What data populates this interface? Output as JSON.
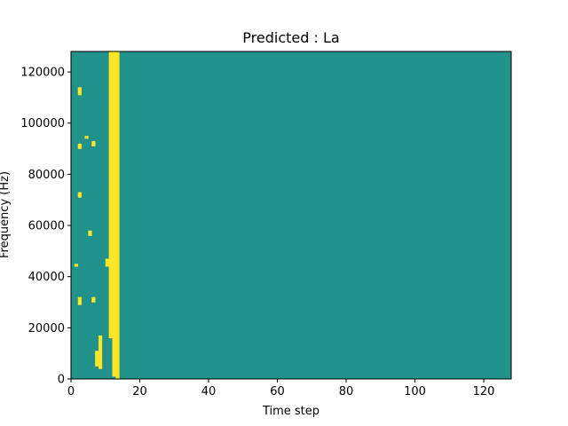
{
  "chart_data": {
    "type": "heatmap",
    "title": "Predicted : La",
    "xlabel": "Time step",
    "ylabel": "Frequency (Hz)",
    "xlim": [
      0,
      128
    ],
    "ylim": [
      0,
      128000
    ],
    "x_ticks": [
      0,
      20,
      40,
      60,
      80,
      100,
      120
    ],
    "y_ticks": [
      0,
      20000,
      40000,
      60000,
      80000,
      100000,
      120000
    ],
    "x_tick_labels": [
      "0",
      "20",
      "40",
      "60",
      "80",
      "100",
      "120"
    ],
    "y_tick_labels": [
      "0",
      "20000",
      "40000",
      "60000",
      "80000",
      "100000",
      "120000"
    ],
    "colormap": "viridis",
    "value_range": [
      -1,
      1
    ],
    "colors": {
      "low": "#440154",
      "mid": "#21918c",
      "high": "#fde725"
    },
    "background_value": 0,
    "grid": false,
    "n_time_steps": 128,
    "n_freq_bins": 128,
    "freq_bin_hz": 1000,
    "cells_high": [
      [
        1,
        44
      ],
      [
        2,
        29
      ],
      [
        2,
        30
      ],
      [
        2,
        31
      ],
      [
        2,
        71
      ],
      [
        2,
        72
      ],
      [
        2,
        90
      ],
      [
        2,
        91
      ],
      [
        2,
        111
      ],
      [
        2,
        112
      ],
      [
        2,
        113
      ],
      [
        4,
        94
      ],
      [
        5,
        56
      ],
      [
        5,
        57
      ],
      [
        6,
        30
      ],
      [
        6,
        31
      ],
      [
        6,
        91
      ],
      [
        6,
        92
      ],
      [
        7,
        5
      ],
      [
        7,
        6
      ],
      [
        7,
        7
      ],
      [
        7,
        8
      ],
      [
        7,
        9
      ],
      [
        7,
        10
      ],
      [
        8,
        4
      ],
      [
        8,
        5
      ],
      [
        8,
        6
      ],
      [
        8,
        7
      ],
      [
        8,
        8
      ],
      [
        8,
        9
      ],
      [
        8,
        10
      ],
      [
        8,
        11
      ],
      [
        8,
        12
      ],
      [
        8,
        13
      ],
      [
        8,
        14
      ],
      [
        8,
        15
      ],
      [
        8,
        16
      ],
      [
        10,
        44
      ],
      [
        10,
        45
      ],
      [
        10,
        46
      ],
      [
        11,
        16
      ],
      [
        11,
        17
      ],
      [
        11,
        18
      ],
      [
        11,
        19
      ],
      [
        11,
        20
      ],
      [
        11,
        21
      ],
      [
        11,
        22
      ],
      [
        11,
        23
      ],
      [
        11,
        24
      ],
      [
        11,
        25
      ],
      [
        11,
        26
      ],
      [
        11,
        27
      ],
      [
        11,
        28
      ],
      [
        11,
        29
      ],
      [
        11,
        30
      ],
      [
        11,
        31
      ],
      [
        11,
        32
      ],
      [
        11,
        33
      ],
      [
        11,
        34
      ],
      [
        11,
        35
      ],
      [
        11,
        36
      ],
      [
        11,
        37
      ],
      [
        11,
        38
      ],
      [
        11,
        39
      ],
      [
        11,
        40
      ],
      [
        11,
        41
      ],
      [
        11,
        42
      ],
      [
        11,
        43
      ],
      [
        11,
        44
      ],
      [
        11,
        45
      ],
      [
        11,
        46
      ],
      [
        11,
        47
      ],
      [
        11,
        48
      ],
      [
        11,
        49
      ],
      [
        11,
        50
      ],
      [
        11,
        51
      ],
      [
        11,
        52
      ],
      [
        11,
        53
      ],
      [
        11,
        54
      ],
      [
        11,
        55
      ],
      [
        11,
        56
      ],
      [
        11,
        57
      ],
      [
        11,
        58
      ],
      [
        11,
        59
      ],
      [
        11,
        60
      ],
      [
        11,
        61
      ],
      [
        11,
        62
      ],
      [
        11,
        63
      ],
      [
        11,
        64
      ],
      [
        11,
        65
      ],
      [
        11,
        66
      ],
      [
        11,
        67
      ],
      [
        11,
        68
      ],
      [
        11,
        69
      ],
      [
        11,
        70
      ],
      [
        11,
        71
      ],
      [
        11,
        72
      ],
      [
        11,
        73
      ],
      [
        11,
        74
      ],
      [
        11,
        75
      ],
      [
        11,
        76
      ],
      [
        11,
        77
      ],
      [
        11,
        78
      ],
      [
        11,
        79
      ],
      [
        11,
        80
      ],
      [
        11,
        81
      ],
      [
        11,
        82
      ],
      [
        11,
        83
      ],
      [
        11,
        84
      ],
      [
        11,
        85
      ],
      [
        11,
        86
      ],
      [
        11,
        87
      ],
      [
        11,
        88
      ],
      [
        11,
        89
      ],
      [
        11,
        90
      ],
      [
        11,
        91
      ],
      [
        11,
        92
      ],
      [
        11,
        93
      ],
      [
        11,
        94
      ],
      [
        11,
        95
      ],
      [
        11,
        96
      ],
      [
        11,
        97
      ],
      [
        11,
        98
      ],
      [
        11,
        99
      ],
      [
        11,
        100
      ],
      [
        11,
        101
      ],
      [
        11,
        102
      ],
      [
        11,
        103
      ],
      [
        11,
        104
      ],
      [
        11,
        105
      ],
      [
        11,
        106
      ],
      [
        11,
        107
      ],
      [
        11,
        108
      ],
      [
        11,
        109
      ],
      [
        11,
        110
      ],
      [
        11,
        111
      ],
      [
        11,
        112
      ],
      [
        11,
        113
      ],
      [
        11,
        114
      ],
      [
        11,
        115
      ],
      [
        11,
        116
      ],
      [
        11,
        117
      ],
      [
        11,
        118
      ],
      [
        11,
        119
      ],
      [
        11,
        120
      ],
      [
        11,
        121
      ],
      [
        11,
        122
      ],
      [
        11,
        123
      ],
      [
        11,
        124
      ],
      [
        11,
        125
      ],
      [
        11,
        126
      ],
      [
        11,
        127
      ],
      [
        12,
        1
      ],
      [
        12,
        2
      ],
      [
        12,
        3
      ],
      [
        12,
        4
      ],
      [
        12,
        5
      ],
      [
        12,
        6
      ],
      [
        12,
        7
      ],
      [
        12,
        8
      ],
      [
        12,
        9
      ],
      [
        12,
        10
      ],
      [
        12,
        11
      ],
      [
        12,
        12
      ],
      [
        12,
        13
      ],
      [
        12,
        14
      ],
      [
        12,
        15
      ],
      [
        12,
        16
      ],
      [
        12,
        17
      ],
      [
        12,
        18
      ],
      [
        12,
        19
      ],
      [
        12,
        20
      ],
      [
        12,
        21
      ],
      [
        12,
        22
      ],
      [
        12,
        23
      ],
      [
        12,
        24
      ],
      [
        12,
        25
      ],
      [
        12,
        26
      ],
      [
        12,
        27
      ],
      [
        12,
        28
      ],
      [
        12,
        29
      ],
      [
        12,
        30
      ],
      [
        12,
        31
      ],
      [
        12,
        32
      ],
      [
        12,
        33
      ],
      [
        12,
        34
      ],
      [
        12,
        35
      ],
      [
        12,
        36
      ],
      [
        12,
        37
      ],
      [
        12,
        38
      ],
      [
        12,
        39
      ],
      [
        12,
        40
      ],
      [
        12,
        41
      ],
      [
        12,
        42
      ],
      [
        12,
        43
      ],
      [
        12,
        44
      ],
      [
        12,
        45
      ],
      [
        12,
        46
      ],
      [
        12,
        47
      ],
      [
        12,
        48
      ],
      [
        12,
        49
      ],
      [
        12,
        50
      ],
      [
        12,
        51
      ],
      [
        12,
        52
      ],
      [
        12,
        53
      ],
      [
        12,
        54
      ],
      [
        12,
        55
      ],
      [
        12,
        56
      ],
      [
        12,
        57
      ],
      [
        12,
        58
      ],
      [
        12,
        59
      ],
      [
        12,
        60
      ],
      [
        12,
        61
      ],
      [
        12,
        62
      ],
      [
        12,
        63
      ],
      [
        12,
        64
      ],
      [
        12,
        65
      ],
      [
        12,
        66
      ],
      [
        12,
        67
      ],
      [
        12,
        68
      ],
      [
        12,
        69
      ],
      [
        12,
        70
      ],
      [
        12,
        71
      ],
      [
        12,
        72
      ],
      [
        12,
        73
      ],
      [
        12,
        74
      ],
      [
        12,
        75
      ],
      [
        12,
        76
      ],
      [
        12,
        77
      ],
      [
        12,
        78
      ],
      [
        12,
        79
      ],
      [
        12,
        80
      ],
      [
        12,
        81
      ],
      [
        12,
        82
      ],
      [
        12,
        83
      ],
      [
        12,
        84
      ],
      [
        12,
        85
      ],
      [
        12,
        86
      ],
      [
        12,
        87
      ],
      [
        12,
        88
      ],
      [
        12,
        89
      ],
      [
        12,
        90
      ],
      [
        12,
        91
      ],
      [
        12,
        92
      ],
      [
        12,
        93
      ],
      [
        12,
        94
      ],
      [
        12,
        95
      ],
      [
        12,
        96
      ],
      [
        12,
        97
      ],
      [
        12,
        98
      ],
      [
        12,
        99
      ],
      [
        12,
        100
      ],
      [
        12,
        101
      ],
      [
        12,
        102
      ],
      [
        12,
        103
      ],
      [
        12,
        104
      ],
      [
        12,
        105
      ],
      [
        12,
        106
      ],
      [
        12,
        107
      ],
      [
        12,
        108
      ],
      [
        12,
        109
      ],
      [
        12,
        110
      ],
      [
        12,
        111
      ],
      [
        12,
        112
      ],
      [
        12,
        113
      ],
      [
        12,
        114
      ],
      [
        12,
        115
      ],
      [
        12,
        116
      ],
      [
        12,
        117
      ],
      [
        12,
        118
      ],
      [
        12,
        119
      ],
      [
        12,
        120
      ],
      [
        12,
        121
      ],
      [
        12,
        122
      ],
      [
        12,
        123
      ],
      [
        12,
        124
      ],
      [
        12,
        125
      ],
      [
        12,
        126
      ],
      [
        12,
        127
      ],
      [
        13,
        0
      ],
      [
        13,
        1
      ],
      [
        13,
        2
      ],
      [
        13,
        3
      ],
      [
        13,
        4
      ],
      [
        13,
        5
      ],
      [
        13,
        6
      ],
      [
        13,
        7
      ],
      [
        13,
        8
      ],
      [
        13,
        9
      ],
      [
        13,
        10
      ],
      [
        13,
        11
      ],
      [
        13,
        12
      ],
      [
        13,
        13
      ],
      [
        13,
        14
      ],
      [
        13,
        15
      ],
      [
        13,
        16
      ],
      [
        13,
        17
      ],
      [
        13,
        18
      ],
      [
        13,
        19
      ],
      [
        13,
        20
      ],
      [
        13,
        21
      ],
      [
        13,
        22
      ],
      [
        13,
        23
      ],
      [
        13,
        24
      ],
      [
        13,
        25
      ],
      [
        13,
        26
      ],
      [
        13,
        27
      ],
      [
        13,
        28
      ],
      [
        13,
        29
      ],
      [
        13,
        30
      ],
      [
        13,
        31
      ],
      [
        13,
        32
      ],
      [
        13,
        33
      ],
      [
        13,
        34
      ],
      [
        13,
        35
      ],
      [
        13,
        36
      ],
      [
        13,
        37
      ],
      [
        13,
        38
      ],
      [
        13,
        39
      ],
      [
        13,
        40
      ],
      [
        13,
        41
      ],
      [
        13,
        42
      ],
      [
        13,
        43
      ],
      [
        13,
        44
      ],
      [
        13,
        45
      ],
      [
        13,
        46
      ],
      [
        13,
        47
      ],
      [
        13,
        48
      ],
      [
        13,
        49
      ],
      [
        13,
        50
      ],
      [
        13,
        51
      ],
      [
        13,
        52
      ],
      [
        13,
        53
      ],
      [
        13,
        54
      ],
      [
        13,
        55
      ],
      [
        13,
        56
      ],
      [
        13,
        57
      ],
      [
        13,
        58
      ],
      [
        13,
        59
      ],
      [
        13,
        60
      ],
      [
        13,
        61
      ],
      [
        13,
        62
      ],
      [
        13,
        63
      ],
      [
        13,
        64
      ],
      [
        13,
        65
      ],
      [
        13,
        66
      ],
      [
        13,
        67
      ],
      [
        13,
        68
      ],
      [
        13,
        69
      ],
      [
        13,
        70
      ],
      [
        13,
        71
      ],
      [
        13,
        72
      ],
      [
        13,
        73
      ],
      [
        13,
        74
      ],
      [
        13,
        75
      ],
      [
        13,
        76
      ],
      [
        13,
        77
      ],
      [
        13,
        78
      ],
      [
        13,
        79
      ],
      [
        13,
        80
      ],
      [
        13,
        81
      ],
      [
        13,
        82
      ],
      [
        13,
        83
      ],
      [
        13,
        84
      ],
      [
        13,
        85
      ],
      [
        13,
        86
      ],
      [
        13,
        87
      ],
      [
        13,
        88
      ],
      [
        13,
        89
      ],
      [
        13,
        90
      ],
      [
        13,
        91
      ],
      [
        13,
        92
      ],
      [
        13,
        93
      ],
      [
        13,
        94
      ],
      [
        13,
        95
      ],
      [
        13,
        96
      ],
      [
        13,
        97
      ],
      [
        13,
        98
      ],
      [
        13,
        99
      ],
      [
        13,
        100
      ],
      [
        13,
        101
      ],
      [
        13,
        102
      ],
      [
        13,
        103
      ],
      [
        13,
        104
      ],
      [
        13,
        105
      ],
      [
        13,
        106
      ],
      [
        13,
        107
      ],
      [
        13,
        108
      ],
      [
        13,
        109
      ],
      [
        13,
        110
      ],
      [
        13,
        111
      ],
      [
        13,
        112
      ],
      [
        13,
        113
      ],
      [
        13,
        114
      ],
      [
        13,
        115
      ],
      [
        13,
        116
      ],
      [
        13,
        117
      ],
      [
        13,
        118
      ],
      [
        13,
        119
      ],
      [
        13,
        120
      ],
      [
        13,
        121
      ],
      [
        13,
        122
      ],
      [
        13,
        123
      ],
      [
        13,
        124
      ],
      [
        13,
        125
      ],
      [
        13,
        126
      ],
      [
        13,
        127
      ]
    ],
    "cells_low": [],
    "note_cells": "pairs are [time_step, frequency_bin]"
  }
}
